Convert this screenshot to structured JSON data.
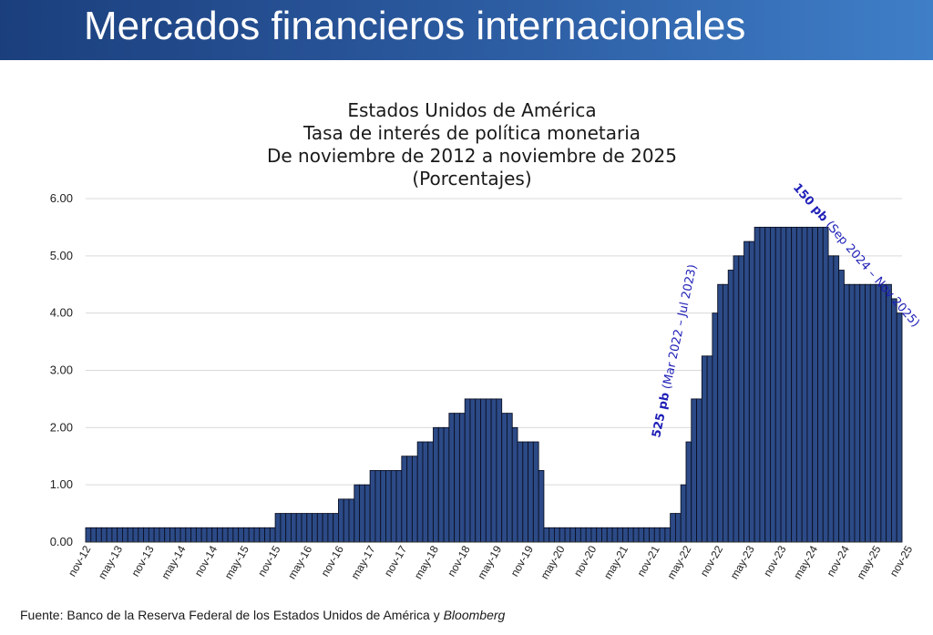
{
  "header": {
    "title": "Mercados financieros internacionales"
  },
  "chart_data": {
    "type": "bar",
    "title_lines": [
      "Estados Unidos de América",
      "Tasa de interés de política monetaria",
      "De noviembre de 2012 a noviembre de 2025",
      "(Porcentajes)"
    ],
    "xlabel": "",
    "ylabel": "",
    "ylim": [
      0,
      6
    ],
    "yticks": [
      "0.00",
      "1.00",
      "2.00",
      "3.00",
      "4.00",
      "5.00",
      "6.00"
    ],
    "grid": true,
    "tick_labels": [
      "nov-12",
      "may-13",
      "nov-13",
      "may-14",
      "nov-14",
      "may-15",
      "nov-15",
      "may-16",
      "nov-16",
      "may-17",
      "nov-17",
      "may-18",
      "nov-18",
      "may-19",
      "nov-19",
      "may-20",
      "nov-20",
      "may-21",
      "nov-21",
      "may-22",
      "nov-22",
      "may-23",
      "nov-23",
      "may-24",
      "nov-24",
      "may-25",
      "nov-25"
    ],
    "start_month": "nov-12",
    "bar_color": "#2c4a86",
    "values": [
      0.25,
      0.25,
      0.25,
      0.25,
      0.25,
      0.25,
      0.25,
      0.25,
      0.25,
      0.25,
      0.25,
      0.25,
      0.25,
      0.25,
      0.25,
      0.25,
      0.25,
      0.25,
      0.25,
      0.25,
      0.25,
      0.25,
      0.25,
      0.25,
      0.25,
      0.25,
      0.25,
      0.25,
      0.25,
      0.25,
      0.25,
      0.25,
      0.25,
      0.25,
      0.25,
      0.25,
      0.5,
      0.5,
      0.5,
      0.5,
      0.5,
      0.5,
      0.5,
      0.5,
      0.5,
      0.5,
      0.5,
      0.5,
      0.75,
      0.75,
      0.75,
      1.0,
      1.0,
      1.0,
      1.25,
      1.25,
      1.25,
      1.25,
      1.25,
      1.25,
      1.5,
      1.5,
      1.5,
      1.75,
      1.75,
      1.75,
      2.0,
      2.0,
      2.0,
      2.25,
      2.25,
      2.25,
      2.5,
      2.5,
      2.5,
      2.5,
      2.5,
      2.5,
      2.5,
      2.25,
      2.25,
      2.0,
      1.75,
      1.75,
      1.75,
      1.75,
      1.25,
      0.25,
      0.25,
      0.25,
      0.25,
      0.25,
      0.25,
      0.25,
      0.25,
      0.25,
      0.25,
      0.25,
      0.25,
      0.25,
      0.25,
      0.25,
      0.25,
      0.25,
      0.25,
      0.25,
      0.25,
      0.25,
      0.25,
      0.25,
      0.25,
      0.5,
      0.5,
      1.0,
      1.75,
      2.5,
      2.5,
      3.25,
      3.25,
      4.0,
      4.5,
      4.5,
      4.75,
      5.0,
      5.0,
      5.25,
      5.25,
      5.5,
      5.5,
      5.5,
      5.5,
      5.5,
      5.5,
      5.5,
      5.5,
      5.5,
      5.5,
      5.5,
      5.5,
      5.5,
      5.5,
      5.0,
      5.0,
      4.75,
      4.5,
      4.5,
      4.5,
      4.5,
      4.5,
      4.5,
      4.5,
      4.5,
      4.5,
      4.25,
      4.0
    ],
    "annotations": [
      {
        "bold": "525 pb",
        "text": " (Mar 2022 – Jul 2023)",
        "color": "#1f1fb8"
      },
      {
        "bold": "150 pb",
        "text": " (Sep 2024 – Nov 2025)",
        "color": "#1f1fb8"
      }
    ]
  },
  "source": {
    "prefix": "Fuente: Banco de la Reserva Federal de los Estados Unidos de América y ",
    "italic": "Bloomberg"
  }
}
